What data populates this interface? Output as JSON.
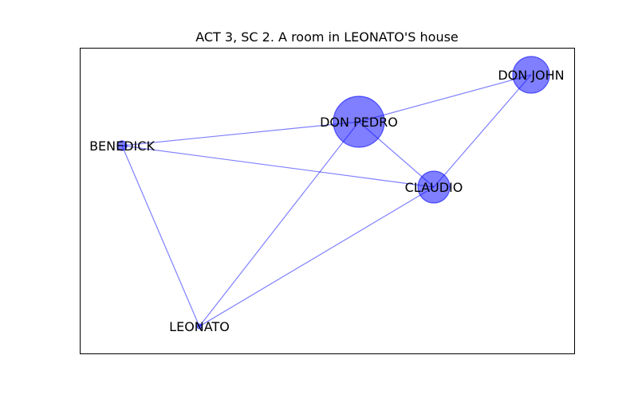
{
  "title": "ACT 3, SC 2. A room in LEONATO'S house",
  "colors": {
    "node": "#0000ff",
    "edge": "#0000ff",
    "frame": "#000000"
  },
  "nodes": [
    {
      "id": "don_pedro",
      "label": "DON PEDRO"
    },
    {
      "id": "don_john",
      "label": "DON JOHN"
    },
    {
      "id": "benedick",
      "label": "BENEDICK"
    },
    {
      "id": "claudio",
      "label": "CLAUDIO"
    },
    {
      "id": "leonato",
      "label": "LEONATO"
    }
  ],
  "edges": [
    [
      "don_pedro",
      "don_john"
    ],
    [
      "don_pedro",
      "benedick"
    ],
    [
      "don_pedro",
      "claudio"
    ],
    [
      "don_pedro",
      "leonato"
    ],
    [
      "don_john",
      "claudio"
    ],
    [
      "benedick",
      "claudio"
    ],
    [
      "benedick",
      "leonato"
    ],
    [
      "claudio",
      "leonato"
    ]
  ]
}
